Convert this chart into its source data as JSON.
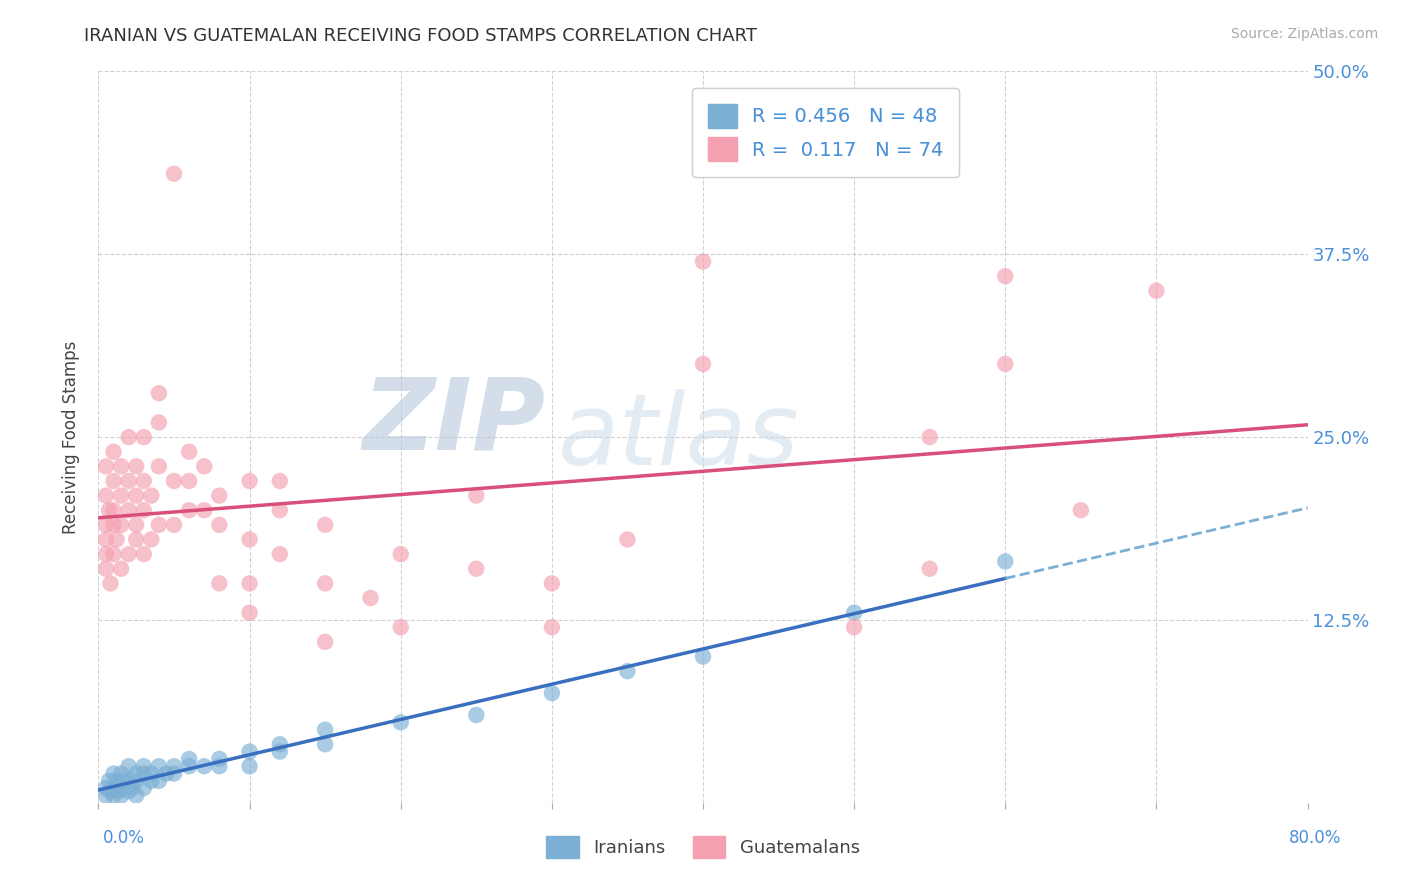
{
  "title": "IRANIAN VS GUATEMALAN RECEIVING FOOD STAMPS CORRELATION CHART",
  "source": "Source: ZipAtlas.com",
  "ylabel": "Receiving Food Stamps",
  "xlim": [
    0.0,
    0.8
  ],
  "ylim": [
    0.0,
    0.5
  ],
  "yticks": [
    0.0,
    0.125,
    0.25,
    0.375,
    0.5
  ],
  "ytick_labels": [
    "",
    "12.5%",
    "25.0%",
    "37.5%",
    "50.0%"
  ],
  "xtick_labels": [
    "0.0%",
    "",
    "",
    "",
    "",
    "",
    "",
    "",
    "80.0%"
  ],
  "grid_color": "#cccccc",
  "background_color": "#ffffff",
  "iranian_color": "#7bafd4",
  "guatemalan_color": "#f4a0b0",
  "iranian_line_color": "#3a6fbf",
  "guatemalan_line_color": "#d94f7a",
  "iranian_R": 0.456,
  "iranian_N": 48,
  "guatemalan_R": 0.117,
  "guatemalan_N": 74,
  "watermark_zip": "ZIP",
  "watermark_atlas": "atlas",
  "iranian_points": [
    [
      0.005,
      0.01
    ],
    [
      0.005,
      0.005
    ],
    [
      0.007,
      0.015
    ],
    [
      0.008,
      0.008
    ],
    [
      0.01,
      0.02
    ],
    [
      0.01,
      0.01
    ],
    [
      0.01,
      0.005
    ],
    [
      0.012,
      0.015
    ],
    [
      0.013,
      0.008
    ],
    [
      0.015,
      0.01
    ],
    [
      0.015,
      0.02
    ],
    [
      0.015,
      0.005
    ],
    [
      0.016,
      0.015
    ],
    [
      0.02,
      0.015
    ],
    [
      0.02,
      0.008
    ],
    [
      0.02,
      0.025
    ],
    [
      0.022,
      0.01
    ],
    [
      0.025,
      0.02
    ],
    [
      0.025,
      0.015
    ],
    [
      0.025,
      0.005
    ],
    [
      0.03,
      0.02
    ],
    [
      0.03,
      0.01
    ],
    [
      0.03,
      0.025
    ],
    [
      0.035,
      0.015
    ],
    [
      0.035,
      0.02
    ],
    [
      0.04,
      0.015
    ],
    [
      0.04,
      0.025
    ],
    [
      0.045,
      0.02
    ],
    [
      0.05,
      0.02
    ],
    [
      0.05,
      0.025
    ],
    [
      0.06,
      0.025
    ],
    [
      0.06,
      0.03
    ],
    [
      0.07,
      0.025
    ],
    [
      0.08,
      0.03
    ],
    [
      0.08,
      0.025
    ],
    [
      0.1,
      0.035
    ],
    [
      0.1,
      0.025
    ],
    [
      0.12,
      0.035
    ],
    [
      0.12,
      0.04
    ],
    [
      0.15,
      0.04
    ],
    [
      0.15,
      0.05
    ],
    [
      0.2,
      0.055
    ],
    [
      0.25,
      0.06
    ],
    [
      0.3,
      0.075
    ],
    [
      0.35,
      0.09
    ],
    [
      0.4,
      0.1
    ],
    [
      0.5,
      0.13
    ],
    [
      0.6,
      0.165
    ]
  ],
  "guatemalan_points": [
    [
      0.005,
      0.17
    ],
    [
      0.005,
      0.19
    ],
    [
      0.005,
      0.21
    ],
    [
      0.005,
      0.16
    ],
    [
      0.005,
      0.23
    ],
    [
      0.005,
      0.18
    ],
    [
      0.007,
      0.2
    ],
    [
      0.008,
      0.15
    ],
    [
      0.01,
      0.19
    ],
    [
      0.01,
      0.22
    ],
    [
      0.01,
      0.17
    ],
    [
      0.01,
      0.24
    ],
    [
      0.01,
      0.2
    ],
    [
      0.012,
      0.18
    ],
    [
      0.015,
      0.21
    ],
    [
      0.015,
      0.16
    ],
    [
      0.015,
      0.23
    ],
    [
      0.015,
      0.19
    ],
    [
      0.02,
      0.22
    ],
    [
      0.02,
      0.17
    ],
    [
      0.02,
      0.2
    ],
    [
      0.02,
      0.25
    ],
    [
      0.025,
      0.18
    ],
    [
      0.025,
      0.21
    ],
    [
      0.025,
      0.23
    ],
    [
      0.025,
      0.19
    ],
    [
      0.03,
      0.2
    ],
    [
      0.03,
      0.22
    ],
    [
      0.03,
      0.17
    ],
    [
      0.03,
      0.25
    ],
    [
      0.035,
      0.21
    ],
    [
      0.035,
      0.18
    ],
    [
      0.04,
      0.19
    ],
    [
      0.04,
      0.23
    ],
    [
      0.04,
      0.26
    ],
    [
      0.04,
      0.28
    ],
    [
      0.05,
      0.22
    ],
    [
      0.05,
      0.19
    ],
    [
      0.05,
      0.43
    ],
    [
      0.06,
      0.2
    ],
    [
      0.06,
      0.24
    ],
    [
      0.06,
      0.22
    ],
    [
      0.07,
      0.2
    ],
    [
      0.07,
      0.23
    ],
    [
      0.08,
      0.21
    ],
    [
      0.08,
      0.19
    ],
    [
      0.08,
      0.15
    ],
    [
      0.1,
      0.18
    ],
    [
      0.1,
      0.22
    ],
    [
      0.1,
      0.13
    ],
    [
      0.1,
      0.15
    ],
    [
      0.12,
      0.2
    ],
    [
      0.12,
      0.17
    ],
    [
      0.12,
      0.22
    ],
    [
      0.15,
      0.19
    ],
    [
      0.15,
      0.15
    ],
    [
      0.15,
      0.11
    ],
    [
      0.18,
      0.14
    ],
    [
      0.2,
      0.17
    ],
    [
      0.2,
      0.12
    ],
    [
      0.25,
      0.21
    ],
    [
      0.25,
      0.16
    ],
    [
      0.3,
      0.15
    ],
    [
      0.3,
      0.12
    ],
    [
      0.35,
      0.18
    ],
    [
      0.4,
      0.37
    ],
    [
      0.4,
      0.3
    ],
    [
      0.5,
      0.12
    ],
    [
      0.55,
      0.25
    ],
    [
      0.55,
      0.16
    ],
    [
      0.6,
      0.3
    ],
    [
      0.6,
      0.36
    ],
    [
      0.65,
      0.2
    ],
    [
      0.7,
      0.35
    ]
  ]
}
